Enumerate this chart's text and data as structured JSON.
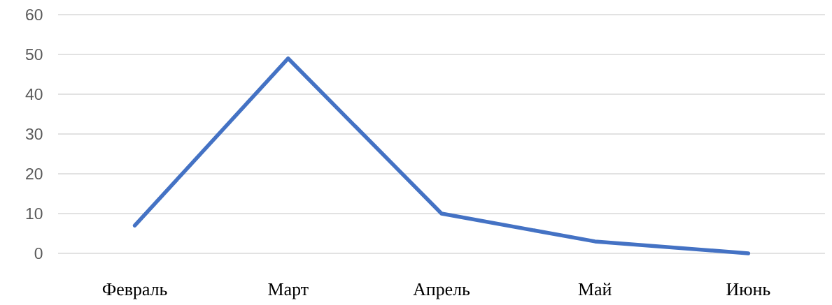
{
  "chart_data": {
    "type": "line",
    "categories": [
      "Февраль",
      "Март",
      "Апрель",
      "Май",
      "Июнь"
    ],
    "values": [
      7,
      49,
      10,
      3,
      0
    ],
    "color": "#4472c4",
    "ylim": [
      0,
      60
    ],
    "yticks": [
      0,
      10,
      20,
      30,
      40,
      50,
      60
    ],
    "grid": "y",
    "marker": "none",
    "line_style": "solid"
  }
}
